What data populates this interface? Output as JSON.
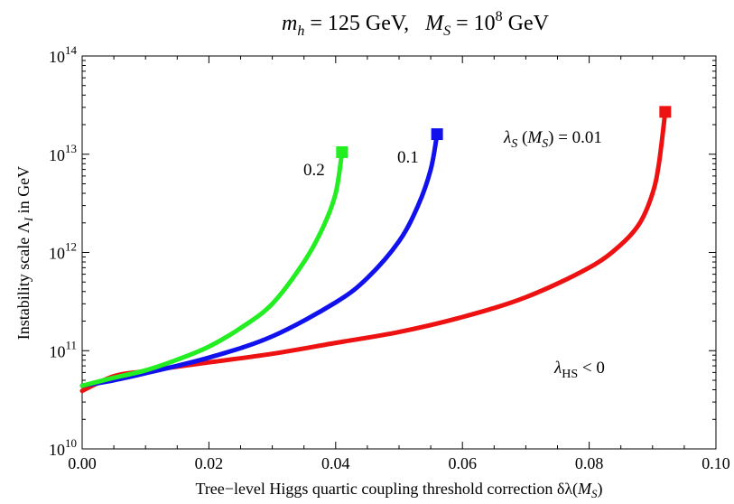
{
  "chart_data": {
    "type": "line",
    "title": "m_h = 125 GeV,   M_S = 10^8 GeV",
    "title_parts": {
      "mh_var": "m",
      "mh_sub": "h",
      "mh_rest": " = 125 GeV,   ",
      "ms_var": "M",
      "ms_sub": "S",
      "ms_rest": " = 10",
      "ms_exp": "8",
      "ms_unit": " GeV"
    },
    "xlabel": "Tree−level Higgs quartic coupling threshold correction δλ(M_S)",
    "xlabel_parts": {
      "text": "Tree−level Higgs quartic coupling threshold correction δλ(",
      "var": "M",
      "sub": "S",
      "close": ")"
    },
    "ylabel": "Instability scale Λ_I in GeV",
    "ylabel_parts": {
      "pre": "Instability scale Λ",
      "sub": "I",
      "post": " in GeV"
    },
    "xlim": [
      0,
      0.1
    ],
    "ylim_log10": [
      10,
      14
    ],
    "y_scale": "log",
    "x_ticks": [
      "0.00",
      "0.02",
      "0.04",
      "0.06",
      "0.08",
      "0.10"
    ],
    "y_ticks": [
      {
        "base": "10",
        "exp": "10"
      },
      {
        "base": "10",
        "exp": "11"
      },
      {
        "base": "10",
        "exp": "12"
      },
      {
        "base": "10",
        "exp": "13"
      },
      {
        "base": "10",
        "exp": "14"
      }
    ],
    "grid": false,
    "series": [
      {
        "name": "0.01",
        "color": "#ee1111",
        "x": [
          0.0,
          0.005,
          0.01,
          0.02,
          0.03,
          0.04,
          0.05,
          0.06,
          0.07,
          0.08,
          0.085,
          0.088,
          0.09,
          0.091,
          0.092
        ],
        "y": [
          39000000000.0,
          55000000000.0,
          62000000000.0,
          76000000000.0,
          93000000000.0,
          120000000000.0,
          155000000000.0,
          220000000000.0,
          350000000000.0,
          700000000000.0,
          1200000000000.0,
          2000000000000.0,
          4000000000000.0,
          8000000000000.0,
          27000000000000.0
        ],
        "endpoint": {
          "x": 0.092,
          "y": 27000000000000.0
        }
      },
      {
        "name": "0.1",
        "color": "#1111ee",
        "x": [
          0.0,
          0.005,
          0.01,
          0.02,
          0.03,
          0.04,
          0.045,
          0.05,
          0.053,
          0.055,
          0.056
        ],
        "y": [
          44000000000.0,
          50000000000.0,
          59000000000.0,
          85000000000.0,
          140000000000.0,
          310000000000.0,
          550000000000.0,
          1300000000000.0,
          3000000000000.0,
          7000000000000.0,
          16000000000000.0
        ],
        "endpoint": {
          "x": 0.056,
          "y": 16000000000000.0
        }
      },
      {
        "name": "0.2",
        "color": "#22ee22",
        "x": [
          0.0,
          0.005,
          0.01,
          0.015,
          0.02,
          0.025,
          0.03,
          0.035,
          0.038,
          0.04,
          0.041
        ],
        "y": [
          44000000000.0,
          53000000000.0,
          63000000000.0,
          81000000000.0,
          110000000000.0,
          170000000000.0,
          300000000000.0,
          800000000000.0,
          1800000000000.0,
          4000000000000.0,
          10500000000000.0
        ],
        "endpoint": {
          "x": 0.041,
          "y": 10500000000000.0
        }
      }
    ],
    "annotations": {
      "lambda_s_expr": {
        "lam": "λ",
        "sub": "S",
        "paren_open": " (",
        "var": "M",
        "var_sub": "S",
        "rest": ") = 0.01"
      },
      "label_01": "0.1",
      "label_02": "0.2",
      "lambda_hs": {
        "lam": "λ",
        "sub": "HS",
        "rest": " < 0"
      }
    }
  }
}
